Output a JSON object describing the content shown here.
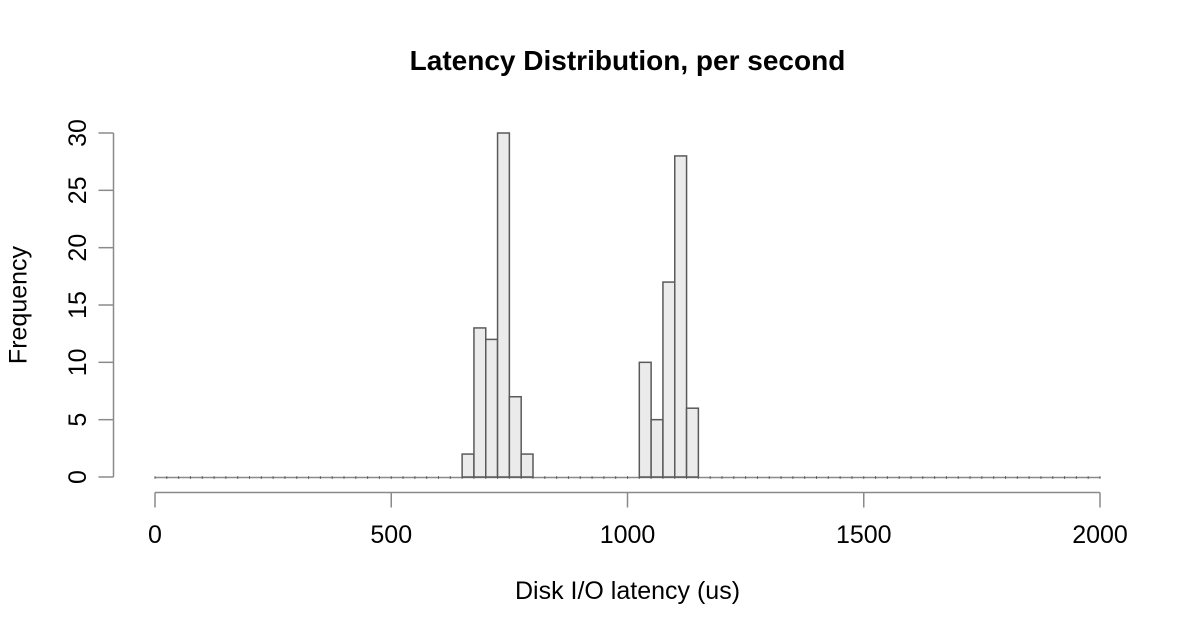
{
  "chart_data": {
    "type": "bar",
    "subtype": "histogram",
    "title": "Latency Distribution, per second",
    "xlabel": "Disk I/O latency (us)",
    "ylabel": "Frequency",
    "xlim": [
      0,
      2000
    ],
    "ylim": [
      0,
      30
    ],
    "x_ticks": [
      0,
      500,
      1000,
      1500,
      2000
    ],
    "y_ticks": [
      0,
      5,
      10,
      15,
      20,
      25,
      30
    ],
    "bin_width": 25,
    "bins": [
      {
        "start": 650,
        "end": 675,
        "count": 2
      },
      {
        "start": 675,
        "end": 700,
        "count": 13
      },
      {
        "start": 700,
        "end": 725,
        "count": 12
      },
      {
        "start": 725,
        "end": 750,
        "count": 30
      },
      {
        "start": 750,
        "end": 775,
        "count": 7
      },
      {
        "start": 775,
        "end": 800,
        "count": 2
      },
      {
        "start": 1025,
        "end": 1050,
        "count": 10
      },
      {
        "start": 1050,
        "end": 1075,
        "count": 5
      },
      {
        "start": 1075,
        "end": 1100,
        "count": 17
      },
      {
        "start": 1100,
        "end": 1125,
        "count": 28
      },
      {
        "start": 1125,
        "end": 1150,
        "count": 6
      }
    ],
    "all_other_bins_zero": true,
    "grid": false,
    "legend": "none",
    "colors": {
      "background": "#ffffff",
      "bar_fill": "#ebebeb",
      "bar_border": "#5a5a5a",
      "axis": "#8a8a8a",
      "baseline": "#8a8a8a",
      "baseline_mark": "#4d4d4d",
      "text": "#000000"
    }
  }
}
